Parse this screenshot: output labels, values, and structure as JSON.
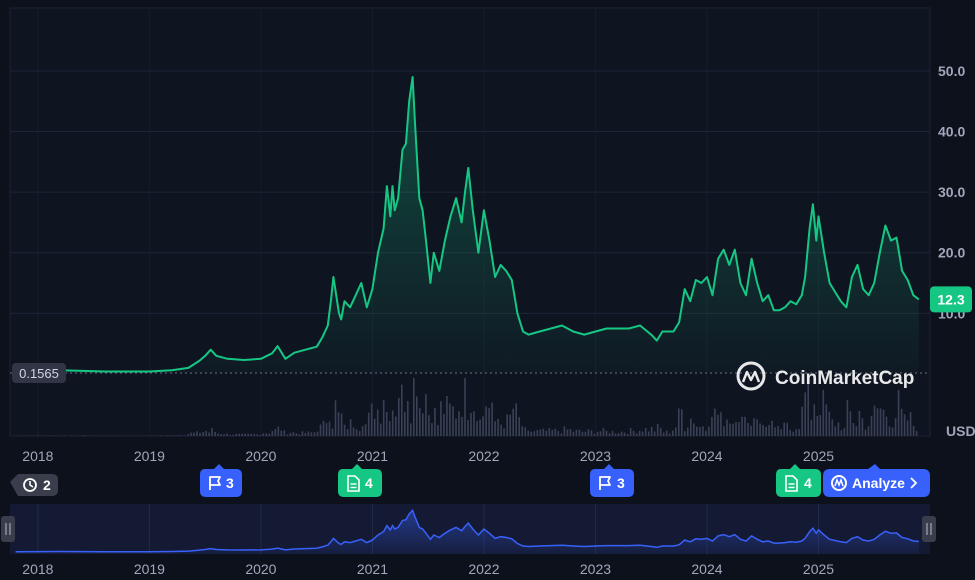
{
  "chart_data": {
    "type": "line",
    "currency_label": "USD",
    "y_ticks": [
      10.0,
      20.0,
      30.0,
      40.0,
      50.0
    ],
    "y_tick_labels": [
      "10.0",
      "20.0",
      "30.0",
      "40.0",
      "50.0"
    ],
    "ylim": [
      0.1565,
      58
    ],
    "baseline_value": 0.1565,
    "baseline_label": "0.1565",
    "current_value": 12.3,
    "current_label": "12.3",
    "x_tick_labels": [
      "2018",
      "2019",
      "2020",
      "2021",
      "2022",
      "2023",
      "2024",
      "2025"
    ],
    "x_tick_values": [
      2018,
      2019,
      2020,
      2021,
      2022,
      2023,
      2024,
      2025
    ],
    "xlim": [
      2017.75,
      2026.0
    ],
    "grid": true,
    "watermark": "CoinMarketCap",
    "colors": {
      "line": "#16c784",
      "nav_line": "#3861fb",
      "price_tag": "#16c784",
      "background": "#0d111c"
    },
    "series": [
      {
        "points": [
          [
            2017.8,
            0.3
          ],
          [
            2018.0,
            0.5
          ],
          [
            2018.2,
            0.6
          ],
          [
            2018.4,
            0.5
          ],
          [
            2018.6,
            0.4
          ],
          [
            2018.8,
            0.4
          ],
          [
            2019.0,
            0.4
          ],
          [
            2019.2,
            0.6
          ],
          [
            2019.35,
            1.0
          ],
          [
            2019.45,
            2.2
          ],
          [
            2019.5,
            3.0
          ],
          [
            2019.55,
            4.0
          ],
          [
            2019.6,
            3.0
          ],
          [
            2019.7,
            2.5
          ],
          [
            2019.85,
            2.3
          ],
          [
            2020.0,
            2.5
          ],
          [
            2020.1,
            3.4
          ],
          [
            2020.15,
            4.6
          ],
          [
            2020.22,
            2.5
          ],
          [
            2020.3,
            3.5
          ],
          [
            2020.4,
            4.0
          ],
          [
            2020.5,
            4.5
          ],
          [
            2020.55,
            6.0
          ],
          [
            2020.6,
            8.0
          ],
          [
            2020.63,
            12.5
          ],
          [
            2020.65,
            16.0
          ],
          [
            2020.7,
            10.0
          ],
          [
            2020.72,
            9.0
          ],
          [
            2020.75,
            12.0
          ],
          [
            2020.8,
            11.0
          ],
          [
            2020.85,
            13.0
          ],
          [
            2020.9,
            15.0
          ],
          [
            2020.95,
            11.0
          ],
          [
            2021.0,
            14.0
          ],
          [
            2021.05,
            20.0
          ],
          [
            2021.1,
            24.0
          ],
          [
            2021.13,
            31.0
          ],
          [
            2021.16,
            26.0
          ],
          [
            2021.18,
            31.0
          ],
          [
            2021.2,
            27.0
          ],
          [
            2021.23,
            29.0
          ],
          [
            2021.27,
            37.0
          ],
          [
            2021.3,
            38.0
          ],
          [
            2021.33,
            45.0
          ],
          [
            2021.36,
            49.0
          ],
          [
            2021.38,
            42.0
          ],
          [
            2021.42,
            29.0
          ],
          [
            2021.45,
            27.0
          ],
          [
            2021.48,
            22.0
          ],
          [
            2021.52,
            15.0
          ],
          [
            2021.55,
            20.0
          ],
          [
            2021.6,
            17.0
          ],
          [
            2021.65,
            22.0
          ],
          [
            2021.7,
            26.0
          ],
          [
            2021.75,
            29.0
          ],
          [
            2021.8,
            25.0
          ],
          [
            2021.83,
            30.0
          ],
          [
            2021.86,
            34.0
          ],
          [
            2021.9,
            27.0
          ],
          [
            2021.95,
            20.0
          ],
          [
            2022.0,
            27.0
          ],
          [
            2022.05,
            22.0
          ],
          [
            2022.1,
            16.0
          ],
          [
            2022.15,
            18.0
          ],
          [
            2022.2,
            17.0
          ],
          [
            2022.25,
            15.5
          ],
          [
            2022.3,
            10.0
          ],
          [
            2022.35,
            7.0
          ],
          [
            2022.4,
            6.5
          ],
          [
            2022.5,
            7.0
          ],
          [
            2022.6,
            7.5
          ],
          [
            2022.7,
            8.0
          ],
          [
            2022.8,
            7.0
          ],
          [
            2022.9,
            6.5
          ],
          [
            2023.0,
            7.0
          ],
          [
            2023.1,
            7.5
          ],
          [
            2023.2,
            7.5
          ],
          [
            2023.3,
            7.5
          ],
          [
            2023.4,
            8.0
          ],
          [
            2023.5,
            6.5
          ],
          [
            2023.55,
            5.5
          ],
          [
            2023.6,
            7.0
          ],
          [
            2023.7,
            7.0
          ],
          [
            2023.75,
            8.5
          ],
          [
            2023.8,
            14.0
          ],
          [
            2023.85,
            12.0
          ],
          [
            2023.9,
            15.5
          ],
          [
            2023.95,
            15.0
          ],
          [
            2024.0,
            16.0
          ],
          [
            2024.05,
            13.0
          ],
          [
            2024.1,
            19.0
          ],
          [
            2024.15,
            20.5
          ],
          [
            2024.2,
            18.0
          ],
          [
            2024.25,
            20.5
          ],
          [
            2024.3,
            15.0
          ],
          [
            2024.35,
            13.0
          ],
          [
            2024.4,
            19.0
          ],
          [
            2024.45,
            15.0
          ],
          [
            2024.5,
            12.0
          ],
          [
            2024.55,
            13.0
          ],
          [
            2024.6,
            10.5
          ],
          [
            2024.65,
            10.5
          ],
          [
            2024.7,
            11.0
          ],
          [
            2024.75,
            12.0
          ],
          [
            2024.8,
            11.5
          ],
          [
            2024.85,
            13.0
          ],
          [
            2024.88,
            16.0
          ],
          [
            2024.92,
            24.0
          ],
          [
            2024.95,
            28.0
          ],
          [
            2024.98,
            22.0
          ],
          [
            2025.0,
            26.0
          ],
          [
            2025.05,
            20.0
          ],
          [
            2025.1,
            15.0
          ],
          [
            2025.15,
            13.5
          ],
          [
            2025.2,
            12.0
          ],
          [
            2025.25,
            11.0
          ],
          [
            2025.3,
            16.0
          ],
          [
            2025.35,
            18.0
          ],
          [
            2025.4,
            14.0
          ],
          [
            2025.45,
            13.0
          ],
          [
            2025.5,
            15.0
          ],
          [
            2025.55,
            20.0
          ],
          [
            2025.6,
            24.5
          ],
          [
            2025.65,
            22.0
          ],
          [
            2025.7,
            22.5
          ],
          [
            2025.75,
            17.0
          ],
          [
            2025.8,
            15.5
          ],
          [
            2025.85,
            13.0
          ],
          [
            2025.9,
            12.3
          ]
        ]
      }
    ],
    "volume_bars": 300
  },
  "markers": {
    "history_count": "2",
    "flag_2019": "3",
    "doc_2021": "4",
    "flag_2023": "3",
    "doc_2024": "4"
  },
  "analyze_label": "Analyze",
  "icons": {
    "history": "history-icon",
    "flag": "flag-icon",
    "document": "document-icon",
    "analyze": "coinmarketcap-logo-icon",
    "chevron": "chevron-right-icon",
    "handle": "drag-handle-icon"
  }
}
